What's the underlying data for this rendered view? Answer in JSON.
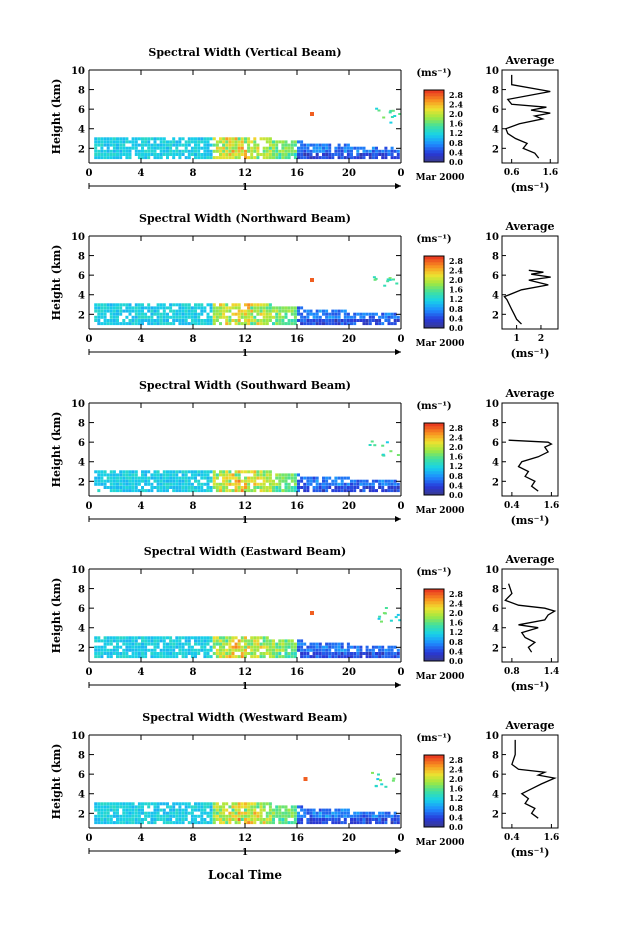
{
  "figure": {
    "xlabel": "Local Time",
    "date_label": "Mar 2000",
    "day_label": "1",
    "ylabel": "Height (km)",
    "units_label": "(ms⁻¹)",
    "avg_title": "Average",
    "avg_xlabel": "(ms⁻¹)"
  },
  "chart_data": [
    {
      "type": "heatmap",
      "title": "Spectral Width (Vertical Beam)",
      "xlabel": "Local Time",
      "ylabel": "Height (km)",
      "xticks": [
        "0",
        "4",
        "8",
        "12",
        "16",
        "20",
        "0"
      ],
      "yticks": [
        "2",
        "4",
        "6",
        "8",
        "10"
      ],
      "xlim": [
        0,
        24
      ],
      "ylim": [
        0.5,
        10
      ],
      "colorbar": {
        "ticks": [
          "0.0",
          "0.4",
          "0.8",
          "1.2",
          "1.6",
          "2.0",
          "2.4",
          "2.8"
        ],
        "range": [
          0,
          3.0
        ]
      },
      "average": {
        "type": "line",
        "title": "Average",
        "xticks": [
          "0.6",
          "1.6"
        ],
        "xlim": [
          0.35,
          1.8
        ],
        "ylim": [
          0.5,
          10
        ],
        "values": [
          [
            1.3,
            1.0
          ],
          [
            1.2,
            1.5
          ],
          [
            0.9,
            2.0
          ],
          [
            1.0,
            2.5
          ],
          [
            0.7,
            3.0
          ],
          [
            0.5,
            3.5
          ],
          [
            0.45,
            4.0
          ],
          [
            0.8,
            4.5
          ],
          [
            1.4,
            5.0
          ],
          [
            1.2,
            5.3
          ],
          [
            1.6,
            5.6
          ],
          [
            1.1,
            5.9
          ],
          [
            1.5,
            6.2
          ],
          [
            0.6,
            6.5
          ],
          [
            0.5,
            7.0
          ],
          [
            1.6,
            7.8
          ],
          [
            0.6,
            8.5
          ],
          [
            0.6,
            9.5
          ]
        ]
      },
      "high_patch": {
        "time": 17.0,
        "height": 5.3,
        "value": 2.8
      }
    },
    {
      "type": "heatmap",
      "title": "Spectral Width (Northward Beam)",
      "xlabel": "Local Time",
      "ylabel": "Height (km)",
      "xticks": [
        "0",
        "4",
        "8",
        "12",
        "16",
        "20",
        "0"
      ],
      "yticks": [
        "2",
        "4",
        "6",
        "8",
        "10"
      ],
      "xlim": [
        0,
        24
      ],
      "ylim": [
        0.5,
        10
      ],
      "colorbar": {
        "ticks": [
          "0.0",
          "0.4",
          "0.8",
          "1.2",
          "1.6",
          "2.0",
          "2.4",
          "2.8"
        ],
        "range": [
          0,
          3.0
        ]
      },
      "average": {
        "type": "line",
        "title": "Average",
        "xticks": [
          "1",
          "2"
        ],
        "xlim": [
          0.4,
          2.7
        ],
        "ylim": [
          0.5,
          10
        ],
        "values": [
          [
            1.2,
            1.0
          ],
          [
            1.0,
            1.5
          ],
          [
            0.9,
            2.0
          ],
          [
            0.8,
            2.5
          ],
          [
            0.7,
            3.0
          ],
          [
            0.6,
            3.5
          ],
          [
            0.5,
            3.8
          ],
          [
            1.2,
            4.5
          ],
          [
            2.3,
            5.0
          ],
          [
            1.5,
            5.5
          ],
          [
            2.4,
            5.8
          ],
          [
            1.6,
            6.1
          ],
          [
            2.1,
            6.3
          ],
          [
            1.5,
            6.5
          ]
        ]
      },
      "high_patch": {
        "time": 17.0,
        "height": 5.3,
        "value": 2.8
      }
    },
    {
      "type": "heatmap",
      "title": "Spectral Width (Southward Beam)",
      "xlabel": "Local Time",
      "ylabel": "Height (km)",
      "xticks": [
        "0",
        "4",
        "8",
        "12",
        "16",
        "20",
        "0"
      ],
      "yticks": [
        "2",
        "4",
        "6",
        "8",
        "10"
      ],
      "xlim": [
        0,
        24
      ],
      "ylim": [
        0.5,
        10
      ],
      "colorbar": {
        "ticks": [
          "0.0",
          "0.4",
          "0.8",
          "1.2",
          "1.6",
          "2.0",
          "2.4",
          "2.8"
        ],
        "range": [
          0,
          3.0
        ]
      },
      "average": {
        "type": "line",
        "title": "Average",
        "xticks": [
          "0.4",
          "1.6"
        ],
        "xlim": [
          0.1,
          1.8
        ],
        "ylim": [
          0.5,
          10
        ],
        "values": [
          [
            1.2,
            1.0
          ],
          [
            1.0,
            1.5
          ],
          [
            1.1,
            2.0
          ],
          [
            0.8,
            2.5
          ],
          [
            0.9,
            3.0
          ],
          [
            0.6,
            3.5
          ],
          [
            0.7,
            4.0
          ],
          [
            1.2,
            4.5
          ],
          [
            1.5,
            5.0
          ],
          [
            1.4,
            5.5
          ],
          [
            1.6,
            5.8
          ],
          [
            1.5,
            6.0
          ],
          [
            0.3,
            6.2
          ]
        ]
      },
      "high_patch": null
    },
    {
      "type": "heatmap",
      "title": "Spectral Width (Eastward Beam)",
      "xlabel": "Local Time",
      "ylabel": "Height (km)",
      "xticks": [
        "0",
        "4",
        "8",
        "12",
        "16",
        "20",
        "0"
      ],
      "yticks": [
        "2",
        "4",
        "6",
        "8",
        "10"
      ],
      "xlim": [
        0,
        24
      ],
      "ylim": [
        0.5,
        10
      ],
      "colorbar": {
        "ticks": [
          "0.0",
          "0.4",
          "0.8",
          "1.2",
          "1.6",
          "2.0",
          "2.4",
          "2.8"
        ],
        "range": [
          0,
          3.0
        ]
      },
      "average": {
        "type": "line",
        "title": "Average",
        "xticks": [
          "0.8",
          "1.4"
        ],
        "xlim": [
          0.65,
          1.5
        ],
        "ylim": [
          0.5,
          10
        ],
        "values": [
          [
            1.1,
            1.5
          ],
          [
            1.05,
            2.0
          ],
          [
            1.15,
            2.5
          ],
          [
            1.0,
            3.0
          ],
          [
            0.95,
            3.5
          ],
          [
            1.2,
            4.0
          ],
          [
            0.9,
            4.3
          ],
          [
            1.3,
            4.8
          ],
          [
            1.35,
            5.3
          ],
          [
            1.45,
            5.7
          ],
          [
            1.3,
            6.0
          ],
          [
            0.9,
            6.3
          ],
          [
            0.7,
            6.8
          ],
          [
            0.8,
            7.5
          ],
          [
            0.75,
            8.5
          ]
        ]
      },
      "high_patch": {
        "time": 17.0,
        "height": 5.3,
        "value": 2.8
      }
    },
    {
      "type": "heatmap",
      "title": "Spectral Width (Westward Beam)",
      "xlabel": "Local Time",
      "ylabel": "Height (km)",
      "xticks": [
        "0",
        "4",
        "8",
        "12",
        "16",
        "20",
        "0"
      ],
      "yticks": [
        "2",
        "4",
        "6",
        "8",
        "10"
      ],
      "xlim": [
        0,
        24
      ],
      "ylim": [
        0.5,
        10
      ],
      "colorbar": {
        "ticks": [
          "0.0",
          "0.4",
          "0.8",
          "1.2",
          "1.6",
          "2.0",
          "2.4",
          "2.8"
        ],
        "range": [
          0,
          3.0
        ]
      },
      "average": {
        "type": "line",
        "title": "Average",
        "xticks": [
          "0.4",
          "1.6"
        ],
        "xlim": [
          0.1,
          1.8
        ],
        "ylim": [
          0.5,
          10
        ],
        "values": [
          [
            1.2,
            1.5
          ],
          [
            1.0,
            2.0
          ],
          [
            1.1,
            2.5
          ],
          [
            0.8,
            3.0
          ],
          [
            0.9,
            3.5
          ],
          [
            0.7,
            4.0
          ],
          [
            1.0,
            4.5
          ],
          [
            1.3,
            5.0
          ],
          [
            1.5,
            5.3
          ],
          [
            1.7,
            5.6
          ],
          [
            1.2,
            5.9
          ],
          [
            1.4,
            6.2
          ],
          [
            0.6,
            6.5
          ],
          [
            0.4,
            7.0
          ],
          [
            0.5,
            8.0
          ],
          [
            0.5,
            9.5
          ]
        ]
      },
      "high_patch": {
        "time": 16.5,
        "height": 5.3,
        "value": 2.8
      }
    }
  ]
}
